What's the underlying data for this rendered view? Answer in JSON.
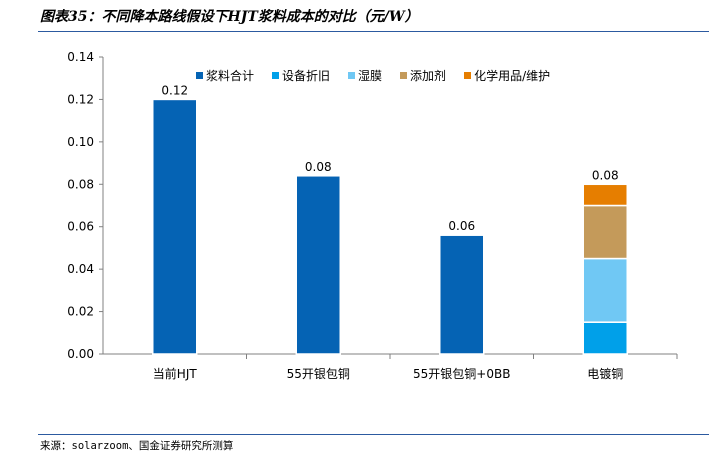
{
  "figure": {
    "title": "图表35：不同降本路线假设下HJT浆料成本的对比（元/W）",
    "source": "来源：solarzoom、国金证券研究所测算"
  },
  "chart_data": {
    "type": "bar",
    "stacked": true,
    "categories": [
      "当前HJT",
      "55开银包铜",
      "55开银包铜+0BB",
      "电镀铜"
    ],
    "series": [
      {
        "name": "浆料合计",
        "color": "#0563B4",
        "values": [
          0.12,
          0.084,
          0.056,
          null
        ]
      },
      {
        "name": "设备折旧",
        "color": "#00A0E9",
        "values": [
          null,
          null,
          null,
          0.015
        ]
      },
      {
        "name": "湿膜",
        "color": "#70C8F4",
        "values": [
          null,
          null,
          null,
          0.03
        ]
      },
      {
        "name": "添加剂",
        "color": "#C49A5A",
        "values": [
          null,
          null,
          null,
          0.025
        ]
      },
      {
        "name": "化学用品/维护",
        "color": "#E67E00",
        "values": [
          null,
          null,
          null,
          0.01
        ]
      }
    ],
    "total_labels": [
      "0.12",
      "0.08",
      "0.06",
      "0.08"
    ],
    "yticks": [
      "0.00",
      "0.02",
      "0.04",
      "0.06",
      "0.08",
      "0.10",
      "0.12",
      "0.14"
    ],
    "ylim": [
      0,
      0.14
    ],
    "xlabel": "",
    "ylabel": "",
    "grid": false,
    "legend_position": "top"
  }
}
